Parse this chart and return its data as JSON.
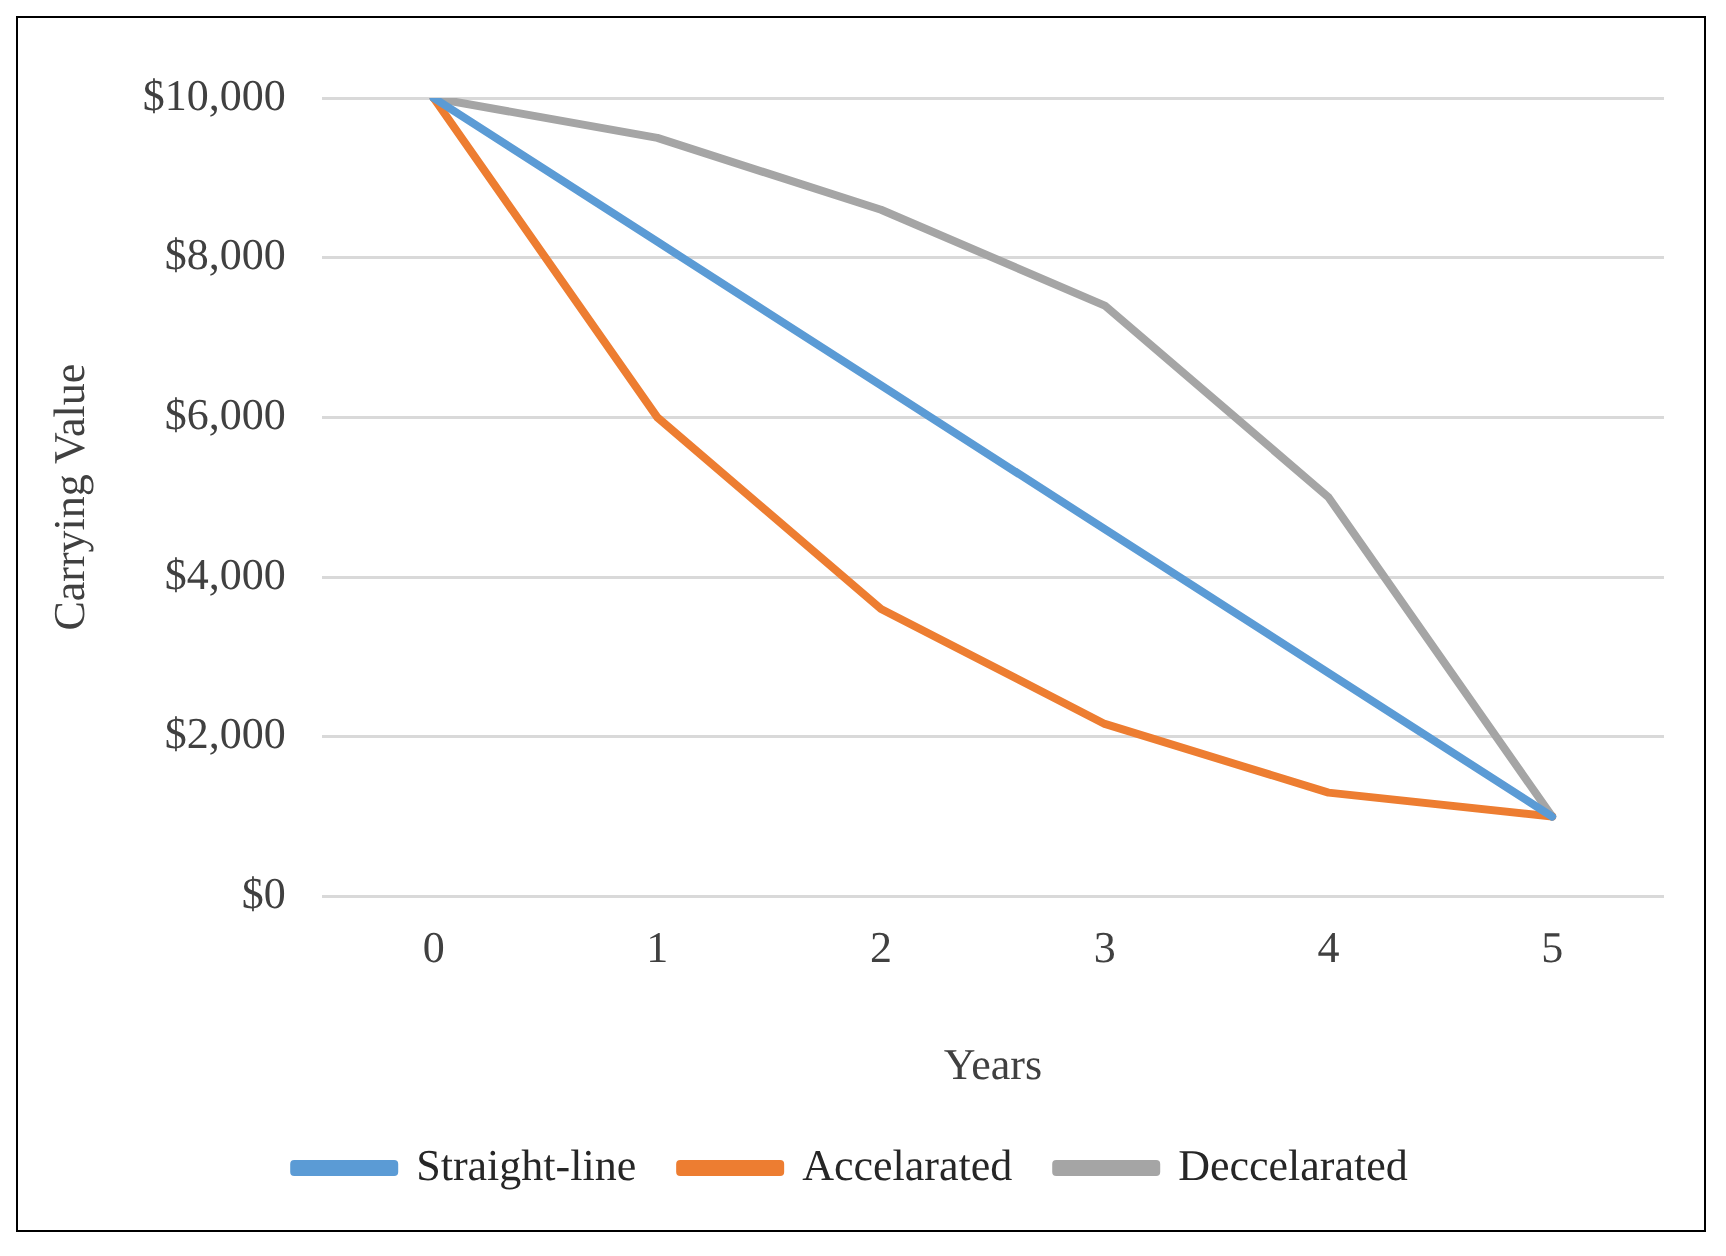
{
  "chart_data": {
    "type": "line",
    "xlabel": "Years",
    "ylabel": "Carrying Value",
    "categories": [
      "0",
      "1",
      "2",
      "3",
      "4",
      "5"
    ],
    "series": [
      {
        "name": "Straight-line",
        "color": "#5b9bd5",
        "values": [
          10000,
          8200,
          6400,
          4600,
          2800,
          1000
        ]
      },
      {
        "name": "Accelarated",
        "color": "#ed7d31",
        "values": [
          10000,
          6000,
          3600,
          2160,
          1300,
          1000
        ]
      },
      {
        "name": "Deccelarated",
        "color": "#a5a5a5",
        "values": [
          10000,
          9500,
          8600,
          7400,
          5000,
          1000
        ]
      }
    ],
    "ylim": [
      0,
      10000
    ],
    "yticks": [
      {
        "value": 0,
        "label": "$0"
      },
      {
        "value": 2000,
        "label": "$2,000"
      },
      {
        "value": 4000,
        "label": "$4,000"
      },
      {
        "value": 6000,
        "label": "$6,000"
      },
      {
        "value": 8000,
        "label": "$8,000"
      },
      {
        "value": 10000,
        "label": "$10,000"
      }
    ],
    "grid": "y",
    "legend": "bottom",
    "marker": "none",
    "line_style": "solid"
  }
}
